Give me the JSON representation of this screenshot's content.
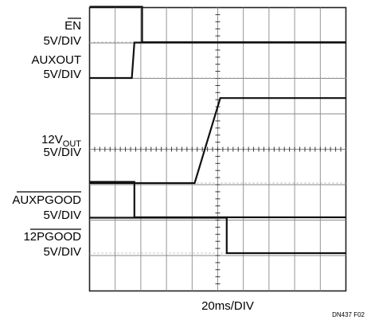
{
  "chart_data": {
    "type": "line",
    "x_unit": "ms",
    "x_divisions": 10,
    "y_divisions": 8,
    "time_per_div": 20,
    "x_axis_label": "20ms/DIV",
    "figure_id": "DN437 F02",
    "traces": [
      {
        "name_line1": "EN",
        "name_overline": true,
        "scale": "5V/DIV",
        "volts_per_div": 5,
        "points": [
          [
            0,
            5
          ],
          [
            41,
            5
          ],
          [
            41,
            0
          ],
          [
            200,
            0
          ]
        ]
      },
      {
        "name_line1": "AUXOUT",
        "scale": "5V/DIV",
        "volts_per_div": 5,
        "points": [
          [
            0,
            0
          ],
          [
            33,
            0
          ],
          [
            35,
            5
          ],
          [
            200,
            5
          ]
        ]
      },
      {
        "name_line1": "12V",
        "name_subscript": "OUT",
        "scale": "5V/DIV",
        "volts_per_div": 5,
        "points": [
          [
            0,
            0
          ],
          [
            82,
            0
          ],
          [
            102,
            12
          ],
          [
            200,
            12
          ]
        ]
      },
      {
        "name_line1": "AUXPGOOD",
        "name_overline": true,
        "scale": "5V/DIV",
        "volts_per_div": 5,
        "points": [
          [
            0,
            5
          ],
          [
            35,
            5
          ],
          [
            35,
            0
          ],
          [
            200,
            0
          ]
        ]
      },
      {
        "name_line1": "12PGOOD",
        "name_overline": true,
        "scale": "5V/DIV",
        "volts_per_div": 5,
        "points": [
          [
            0,
            5
          ],
          [
            107,
            5
          ],
          [
            107,
            0
          ],
          [
            200,
            0
          ]
        ]
      }
    ]
  }
}
